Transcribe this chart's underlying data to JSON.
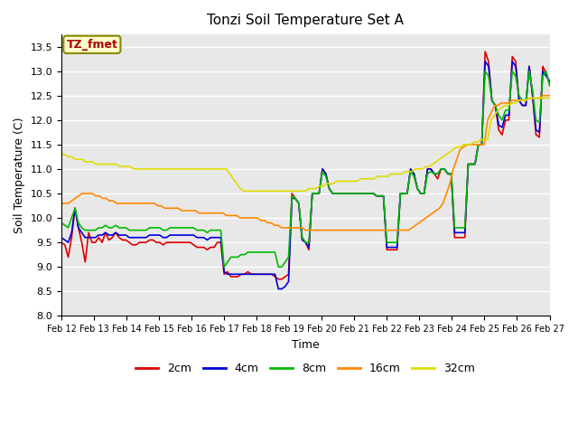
{
  "title": "Tonzi Soil Temperature Set A",
  "xlabel": "Time",
  "ylabel": "Soil Temperature (C)",
  "ylim": [
    8.0,
    13.75
  ],
  "label_box_text": "TZ_fmet",
  "legend_labels": [
    "2cm",
    "4cm",
    "8cm",
    "16cm",
    "32cm"
  ],
  "line_colors": [
    "#dd0000",
    "#0000dd",
    "#00bb00",
    "#ff8800",
    "#dddd00"
  ],
  "x_tick_labels": [
    "Feb 12",
    "Feb 13",
    "Feb 14",
    "Feb 15",
    "Feb 16",
    "Feb 17",
    "Feb 18",
    "Feb 19",
    "Feb 20",
    "Feb 21",
    "Feb 22",
    "Feb 23",
    "Feb 24",
    "Feb 25",
    "Feb 26",
    "Feb 27"
  ],
  "yticks": [
    8.0,
    8.5,
    9.0,
    9.5,
    10.0,
    10.5,
    11.0,
    11.5,
    12.0,
    12.5,
    13.0,
    13.5
  ],
  "data_2cm": [
    9.5,
    9.45,
    9.2,
    9.6,
    10.2,
    9.8,
    9.5,
    9.1,
    9.7,
    9.5,
    9.5,
    9.6,
    9.5,
    9.7,
    9.55,
    9.6,
    9.7,
    9.6,
    9.55,
    9.55,
    9.5,
    9.45,
    9.45,
    9.5,
    9.5,
    9.5,
    9.55,
    9.55,
    9.5,
    9.5,
    9.45,
    9.5,
    9.5,
    9.5,
    9.5,
    9.5,
    9.5,
    9.5,
    9.5,
    9.45,
    9.4,
    9.4,
    9.4,
    9.35,
    9.4,
    9.4,
    9.5,
    9.5,
    8.85,
    8.9,
    8.8,
    8.8,
    8.8,
    8.85,
    8.85,
    8.9,
    8.85,
    8.85,
    8.85,
    8.85,
    8.85,
    8.85,
    8.85,
    8.8,
    8.75,
    8.75,
    8.8,
    8.85,
    10.5,
    10.4,
    10.3,
    9.6,
    9.5,
    9.35,
    10.5,
    10.5,
    10.5,
    11.0,
    10.9,
    10.6,
    10.5,
    10.5,
    10.5,
    10.5,
    10.5,
    10.5,
    10.5,
    10.5,
    10.5,
    10.5,
    10.5,
    10.5,
    10.5,
    10.45,
    10.45,
    10.45,
    9.35,
    9.35,
    9.35,
    9.35,
    10.5,
    10.5,
    10.5,
    11.0,
    10.9,
    10.6,
    10.5,
    10.5,
    11.0,
    11.0,
    10.9,
    10.8,
    11.0,
    11.0,
    10.9,
    10.9,
    9.6,
    9.6,
    9.6,
    9.6,
    11.1,
    11.1,
    11.1,
    11.5,
    11.5,
    13.4,
    13.2,
    12.4,
    12.3,
    11.8,
    11.7,
    12.0,
    12.0,
    13.3,
    13.2,
    12.4,
    12.3,
    12.3,
    13.1,
    12.5,
    11.7,
    11.65,
    13.1,
    12.95,
    12.75
  ],
  "data_4cm": [
    9.6,
    9.55,
    9.5,
    9.7,
    10.2,
    9.8,
    9.7,
    9.6,
    9.6,
    9.6,
    9.6,
    9.65,
    9.65,
    9.7,
    9.65,
    9.65,
    9.7,
    9.65,
    9.65,
    9.65,
    9.6,
    9.6,
    9.6,
    9.6,
    9.6,
    9.6,
    9.65,
    9.65,
    9.65,
    9.65,
    9.6,
    9.6,
    9.65,
    9.65,
    9.65,
    9.65,
    9.65,
    9.65,
    9.65,
    9.65,
    9.6,
    9.6,
    9.6,
    9.55,
    9.6,
    9.6,
    9.6,
    9.6,
    8.9,
    8.85,
    8.85,
    8.85,
    8.85,
    8.85,
    8.85,
    8.85,
    8.85,
    8.85,
    8.85,
    8.85,
    8.85,
    8.85,
    8.85,
    8.85,
    8.55,
    8.55,
    8.6,
    8.7,
    10.4,
    10.4,
    10.3,
    9.55,
    9.5,
    9.4,
    10.5,
    10.5,
    10.5,
    11.0,
    10.9,
    10.6,
    10.5,
    10.5,
    10.5,
    10.5,
    10.5,
    10.5,
    10.5,
    10.5,
    10.5,
    10.5,
    10.5,
    10.5,
    10.5,
    10.45,
    10.45,
    10.45,
    9.4,
    9.4,
    9.4,
    9.4,
    10.5,
    10.5,
    10.5,
    11.0,
    10.9,
    10.6,
    10.5,
    10.5,
    11.0,
    11.0,
    10.9,
    10.9,
    11.0,
    11.0,
    10.9,
    10.9,
    9.7,
    9.7,
    9.7,
    9.7,
    11.1,
    11.1,
    11.1,
    11.5,
    11.5,
    13.2,
    13.1,
    12.4,
    12.3,
    11.9,
    11.85,
    12.1,
    12.1,
    13.2,
    13.1,
    12.4,
    12.3,
    12.3,
    13.1,
    12.5,
    11.8,
    11.75,
    13.0,
    12.9,
    12.8
  ],
  "data_8cm": [
    9.9,
    9.85,
    9.8,
    10.0,
    10.2,
    9.9,
    9.8,
    9.75,
    9.75,
    9.75,
    9.75,
    9.8,
    9.8,
    9.85,
    9.8,
    9.8,
    9.85,
    9.8,
    9.8,
    9.8,
    9.75,
    9.75,
    9.75,
    9.75,
    9.75,
    9.75,
    9.8,
    9.8,
    9.8,
    9.8,
    9.75,
    9.75,
    9.8,
    9.8,
    9.8,
    9.8,
    9.8,
    9.8,
    9.8,
    9.8,
    9.75,
    9.75,
    9.75,
    9.7,
    9.75,
    9.75,
    9.75,
    9.75,
    9.0,
    9.1,
    9.2,
    9.2,
    9.2,
    9.25,
    9.25,
    9.3,
    9.3,
    9.3,
    9.3,
    9.3,
    9.3,
    9.3,
    9.3,
    9.3,
    9.0,
    9.0,
    9.1,
    9.2,
    10.45,
    10.4,
    10.3,
    9.6,
    9.5,
    9.5,
    10.5,
    10.5,
    10.5,
    10.95,
    10.85,
    10.6,
    10.5,
    10.5,
    10.5,
    10.5,
    10.5,
    10.5,
    10.5,
    10.5,
    10.5,
    10.5,
    10.5,
    10.5,
    10.5,
    10.45,
    10.45,
    10.45,
    9.5,
    9.5,
    9.5,
    9.5,
    10.5,
    10.5,
    10.5,
    10.95,
    10.85,
    10.6,
    10.5,
    10.5,
    10.9,
    10.95,
    10.9,
    10.9,
    11.0,
    11.0,
    10.9,
    10.9,
    9.8,
    9.8,
    9.8,
    9.8,
    11.1,
    11.1,
    11.1,
    11.5,
    11.5,
    13.0,
    12.9,
    12.4,
    12.3,
    12.1,
    12.0,
    12.2,
    12.2,
    13.0,
    12.9,
    12.5,
    12.4,
    12.4,
    13.0,
    12.6,
    12.0,
    11.95,
    12.9,
    13.0,
    12.7
  ],
  "data_16cm": [
    10.3,
    10.3,
    10.3,
    10.35,
    10.4,
    10.45,
    10.5,
    10.5,
    10.5,
    10.5,
    10.45,
    10.45,
    10.4,
    10.4,
    10.35,
    10.35,
    10.3,
    10.3,
    10.3,
    10.3,
    10.3,
    10.3,
    10.3,
    10.3,
    10.3,
    10.3,
    10.3,
    10.3,
    10.25,
    10.25,
    10.2,
    10.2,
    10.2,
    10.2,
    10.2,
    10.15,
    10.15,
    10.15,
    10.15,
    10.15,
    10.1,
    10.1,
    10.1,
    10.1,
    10.1,
    10.1,
    10.1,
    10.1,
    10.05,
    10.05,
    10.05,
    10.05,
    10.0,
    10.0,
    10.0,
    10.0,
    10.0,
    10.0,
    9.95,
    9.95,
    9.9,
    9.9,
    9.85,
    9.85,
    9.8,
    9.8,
    9.8,
    9.8,
    9.8,
    9.8,
    9.8,
    9.75,
    9.75,
    9.75,
    9.75,
    9.75,
    9.75,
    9.75,
    9.75,
    9.75,
    9.75,
    9.75,
    9.75,
    9.75,
    9.75,
    9.75,
    9.75,
    9.75,
    9.75,
    9.75,
    9.75,
    9.75,
    9.75,
    9.75,
    9.75,
    9.75,
    9.75,
    9.75,
    9.75,
    9.75,
    9.75,
    9.75,
    9.8,
    9.85,
    9.9,
    9.95,
    10.0,
    10.05,
    10.1,
    10.15,
    10.2,
    10.3,
    10.5,
    10.7,
    11.0,
    11.2,
    11.4,
    11.45,
    11.5,
    11.5,
    11.5,
    11.5,
    11.5,
    11.5,
    12.0,
    12.15,
    12.3,
    12.3,
    12.35,
    12.35,
    12.35,
    12.4,
    12.4,
    12.4,
    12.4,
    12.4,
    12.45,
    12.45,
    12.45,
    12.45,
    12.5,
    12.5,
    12.5
  ],
  "data_32cm": [
    11.3,
    11.3,
    11.25,
    11.25,
    11.2,
    11.2,
    11.2,
    11.15,
    11.15,
    11.15,
    11.1,
    11.1,
    11.1,
    11.1,
    11.1,
    11.1,
    11.1,
    11.05,
    11.05,
    11.05,
    11.05,
    11.0,
    11.0,
    11.0,
    11.0,
    11.0,
    11.0,
    11.0,
    11.0,
    11.0,
    11.0,
    11.0,
    11.0,
    11.0,
    11.0,
    11.0,
    11.0,
    11.0,
    11.0,
    11.0,
    11.0,
    11.0,
    11.0,
    11.0,
    11.0,
    11.0,
    11.0,
    11.0,
    11.0,
    10.9,
    10.8,
    10.7,
    10.6,
    10.55,
    10.55,
    10.55,
    10.55,
    10.55,
    10.55,
    10.55,
    10.55,
    10.55,
    10.55,
    10.55,
    10.55,
    10.55,
    10.55,
    10.55,
    10.55,
    10.55,
    10.55,
    10.55,
    10.6,
    10.6,
    10.6,
    10.65,
    10.65,
    10.7,
    10.7,
    10.7,
    10.75,
    10.75,
    10.75,
    10.75,
    10.75,
    10.75,
    10.75,
    10.8,
    10.8,
    10.8,
    10.8,
    10.8,
    10.85,
    10.85,
    10.85,
    10.85,
    10.9,
    10.9,
    10.9,
    10.9,
    10.95,
    10.95,
    10.95,
    11.0,
    11.0,
    11.0,
    11.05,
    11.05,
    11.1,
    11.15,
    11.2,
    11.25,
    11.3,
    11.35,
    11.4,
    11.45,
    11.45,
    11.5,
    11.5,
    11.5,
    11.55,
    11.55,
    11.6,
    11.6,
    11.6,
    12.0,
    12.1,
    12.2,
    12.25,
    12.3,
    12.3,
    12.35,
    12.35,
    12.4,
    12.4,
    12.4,
    12.45,
    12.45,
    12.45,
    12.45,
    12.45,
    12.45,
    12.45
  ]
}
